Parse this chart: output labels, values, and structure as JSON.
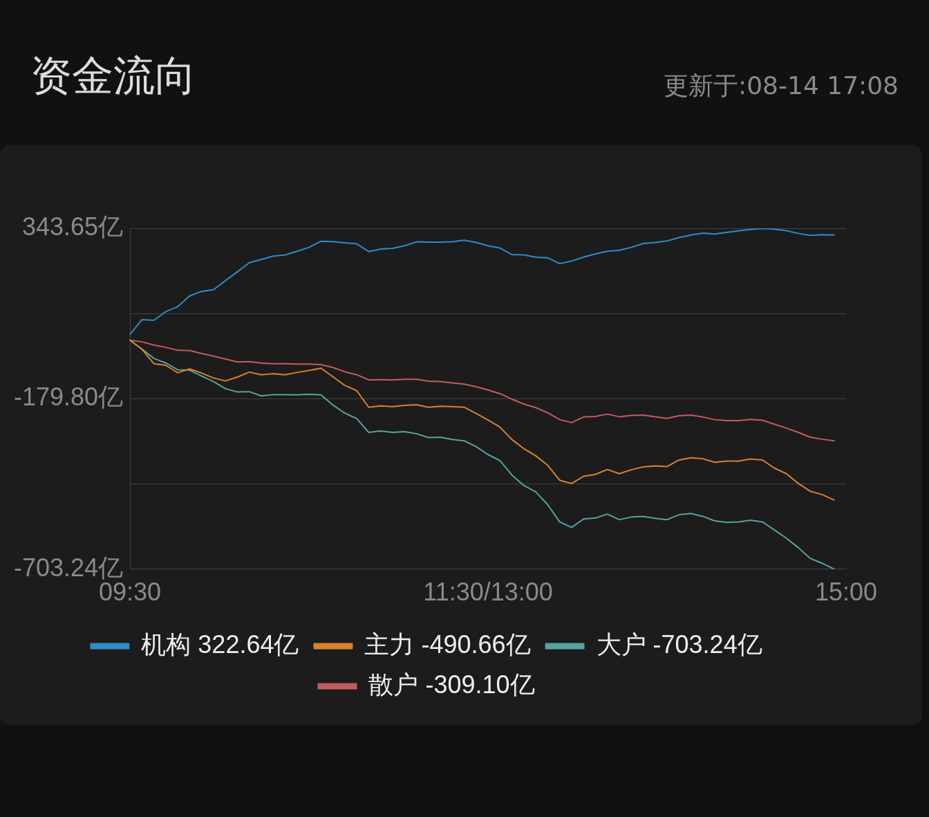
{
  "chart_data": {
    "type": "line",
    "title": "资金流向",
    "subtitle": "更新于:08-14 17:08",
    "categories": [
      "09:30",
      null,
      null,
      null,
      null,
      null,
      null,
      null,
      null,
      null,
      null,
      null,
      null,
      null,
      null,
      null,
      null,
      null,
      null,
      null,
      null,
      null,
      null,
      null,
      null,
      null,
      null,
      null,
      null,
      null,
      "11:30/13:00",
      null,
      null,
      null,
      null,
      null,
      null,
      null,
      null,
      null,
      null,
      null,
      null,
      null,
      null,
      null,
      null,
      null,
      null,
      null,
      null,
      null,
      null,
      null,
      null,
      null,
      null,
      null,
      null,
      null,
      "15:00"
    ],
    "ylim": [
      -703.24,
      343.65
    ],
    "yticks": [
      {
        "value": -703.24,
        "label": "-703.24亿"
      },
      {
        "value": -441.52,
        "label": null
      },
      {
        "value": -179.8,
        "label": "-179.80亿"
      },
      {
        "value": 81.925,
        "label": null
      },
      {
        "value": 343.65,
        "label": "343.65亿"
      }
    ],
    "grid": "y",
    "legend": "bottom",
    "marker": "none",
    "line_style": "solid",
    "series": [
      {
        "name": "机构 322.64亿",
        "color": "#2f8cc6",
        "values": [
          18,
          63,
          61,
          88,
          103,
          136,
          150,
          155,
          183,
          210,
          238,
          248,
          258,
          262,
          273,
          285,
          304,
          303,
          299,
          296,
          272,
          280,
          282,
          290,
          302,
          301,
          301,
          302,
          307,
          300,
          290,
          283,
          263,
          262,
          255,
          253,
          235,
          243,
          255,
          265,
          273,
          276,
          285,
          297,
          300,
          305,
          315,
          323,
          329,
          326,
          331,
          336,
          340,
          343,
          341,
          336,
          328,
          322,
          324,
          323,
          null
        ]
      },
      {
        "name": "主力 -490.66亿",
        "color": "#d9822b",
        "values": [
          0,
          -28,
          -72,
          -77,
          -100,
          -88,
          -101,
          -116,
          -125,
          -113,
          -98,
          -106,
          -103,
          -106,
          -99,
          -93,
          -86,
          -112,
          -139,
          -155,
          -206,
          -202,
          -204,
          -200,
          -198,
          -206,
          -203,
          -204,
          -206,
          -225,
          -245,
          -267,
          -305,
          -333,
          -355,
          -384,
          -430,
          -440,
          -418,
          -412,
          -397,
          -410,
          -398,
          -389,
          -386,
          -388,
          -368,
          -361,
          -364,
          -375,
          -371,
          -371,
          -365,
          -368,
          -393,
          -410,
          -440,
          -464,
          -474,
          -491,
          null
        ]
      },
      {
        "name": "大户 -703.24亿",
        "color": "#56a3a3",
        "values": [
          0,
          -27,
          -56,
          -70,
          -91,
          -92,
          -110,
          -127,
          -149,
          -159,
          -158,
          -171,
          -167,
          -167,
          -168,
          -166,
          -168,
          -199,
          -224,
          -241,
          -283,
          -279,
          -283,
          -281,
          -287,
          -299,
          -298,
          -305,
          -309,
          -327,
          -351,
          -370,
          -414,
          -446,
          -466,
          -505,
          -558,
          -575,
          -549,
          -546,
          -534,
          -551,
          -543,
          -541,
          -547,
          -551,
          -536,
          -532,
          -541,
          -555,
          -559,
          -558,
          -553,
          -558,
          -583,
          -608,
          -637,
          -670,
          -685,
          -703,
          null
        ]
      },
      {
        "name": "散户 -309.10亿",
        "color": "#c45b5f",
        "values": [
          0,
          -5,
          -15,
          -22,
          -31,
          -32,
          -41,
          -49,
          -58,
          -67,
          -66,
          -70,
          -72,
          -72,
          -73,
          -73,
          -75,
          -84,
          -97,
          -106,
          -122,
          -121,
          -122,
          -120,
          -120,
          -126,
          -127,
          -131,
          -135,
          -143,
          -153,
          -164,
          -181,
          -196,
          -207,
          -223,
          -244,
          -253,
          -236,
          -234,
          -227,
          -235,
          -231,
          -230,
          -235,
          -240,
          -232,
          -230,
          -236,
          -244,
          -247,
          -247,
          -243,
          -246,
          -258,
          -270,
          -283,
          -298,
          -304,
          -309,
          null
        ]
      }
    ]
  }
}
